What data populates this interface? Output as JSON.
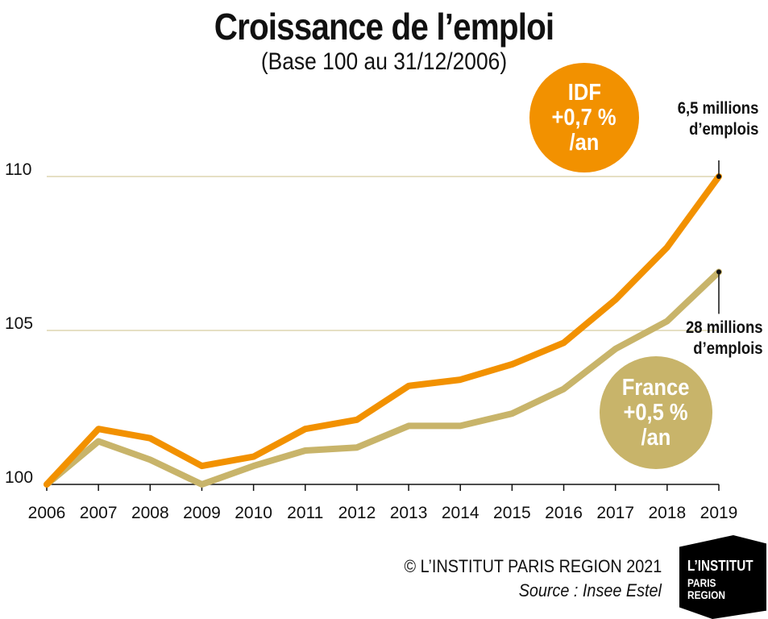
{
  "title": "Croissance de l’emploi",
  "subtitle": "(Base 100 au 31/12/2006)",
  "colors": {
    "idf": "#f29100",
    "france": "#c8b46a",
    "grid": "#ddd5b0",
    "text": "#111111"
  },
  "chart_data": {
    "type": "line",
    "categories": [
      "2006",
      "2007",
      "2008",
      "2009",
      "2010",
      "2011",
      "2012",
      "2013",
      "2014",
      "2015",
      "2016",
      "2017",
      "2018",
      "2019"
    ],
    "yticks": [
      "100",
      "105",
      "110"
    ],
    "ylim": [
      100,
      110.5
    ],
    "grid": true,
    "series": [
      {
        "name": "IDF",
        "color": "#f29100",
        "values": [
          100,
          101.8,
          101.5,
          100.6,
          100.9,
          101.8,
          102.1,
          103.2,
          103.4,
          103.9,
          104.6,
          106.0,
          107.7,
          110.0
        ]
      },
      {
        "name": "France",
        "color": "#c8b46a",
        "values": [
          100,
          101.4,
          100.8,
          100.0,
          100.6,
          101.1,
          101.2,
          101.9,
          101.9,
          102.3,
          103.1,
          104.4,
          105.3,
          106.9
        ]
      }
    ]
  },
  "bubbles": [
    {
      "series": "IDF",
      "line1": "IDF",
      "line2": "+0,7 %",
      "line3": "/an"
    },
    {
      "series": "France",
      "line1": "France",
      "line2": "+0,5 %",
      "line3": "/an"
    }
  ],
  "annotations": [
    {
      "series": "IDF",
      "line1": "6,5 millions",
      "line2": "d’emplois"
    },
    {
      "series": "France",
      "line1": "28 millions",
      "line2": "d’emplois"
    }
  ],
  "credit": "© L’INSTITUT PARIS REGION 2021",
  "source": "Source : Insee Estel",
  "logo": {
    "line1": "L’INSTITUT",
    "line2": "PARIS",
    "line3": "REGION"
  }
}
